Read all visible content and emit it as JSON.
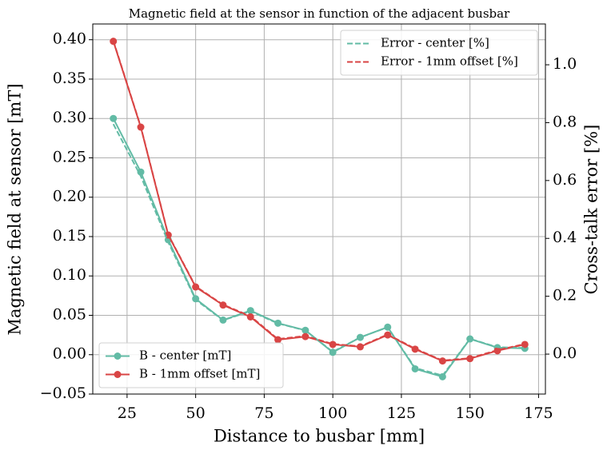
{
  "chart_data": {
    "type": "line",
    "title": "Magnetic field at the sensor in function of the adjacent busbar",
    "x_label": "Distance to busbar [mm]",
    "y_label": "Magnetic field at sensor [mT]",
    "y2_label": "Cross-talk error [%]",
    "x": [
      20,
      30,
      40,
      50,
      60,
      70,
      80,
      90,
      100,
      110,
      120,
      130,
      140,
      150,
      160,
      170
    ],
    "series": [
      {
        "name": "B - center [mT]",
        "color": "#62bba5",
        "line_style": "solid",
        "marker": true,
        "values": [
          0.3,
          0.232,
          0.146,
          0.071,
          0.044,
          0.056,
          0.04,
          0.031,
          0.003,
          0.022,
          0.035,
          -0.018,
          -0.028,
          0.02,
          0.009,
          0.008
        ]
      },
      {
        "name": "B - 1mm offset [mT]",
        "color": "#d94545",
        "line_style": "solid",
        "marker": true,
        "values": [
          0.398,
          0.289,
          0.152,
          0.086,
          0.063,
          0.048,
          0.019,
          0.023,
          0.013,
          0.01,
          0.025,
          0.007,
          -0.008,
          -0.005,
          0.005,
          0.013
        ]
      },
      {
        "name": "Error - center [%]",
        "color": "#62bba5",
        "line_style": "dashed",
        "marker": false,
        "axis": "y2",
        "values": [
          0.795,
          0.615,
          0.387,
          0.188,
          0.117,
          0.148,
          0.106,
          0.082,
          0.008,
          0.058,
          0.093,
          -0.048,
          -0.074,
          0.053,
          0.024,
          0.021
        ]
      },
      {
        "name": "Error - 1mm offset [%]",
        "color": "#d94545",
        "line_style": "dashed",
        "marker": false,
        "axis": "y2",
        "values": [
          1.083,
          0.786,
          0.413,
          0.234,
          0.171,
          0.131,
          0.052,
          0.063,
          0.035,
          0.027,
          0.068,
          0.019,
          -0.022,
          -0.014,
          0.014,
          0.035
        ]
      }
    ],
    "xlim": [
      12.5,
      177.5
    ],
    "xticks": [
      25,
      50,
      75,
      100,
      125,
      150,
      175
    ],
    "ylim": [
      -0.05,
      0.42
    ],
    "yticks": [
      {
        "value": -0.05,
        "label": "−0.05"
      },
      {
        "value": 0,
        "label": "0.00"
      },
      {
        "value": 0.05,
        "label": "0.05"
      },
      {
        "value": 0.1,
        "label": "0.10"
      },
      {
        "value": 0.15,
        "label": "0.15"
      },
      {
        "value": 0.2,
        "label": "0.20"
      },
      {
        "value": 0.25,
        "label": "0.25"
      },
      {
        "value": 0.3,
        "label": "0.30"
      },
      {
        "value": 0.35,
        "label": "0.35"
      },
      {
        "value": 0.4,
        "label": "0.40"
      }
    ],
    "y2lim": [
      -0.138,
      1.141
    ],
    "y2ticks": [
      {
        "value": 0,
        "label": "0.0"
      },
      0.2,
      0.4,
      0.6,
      0.8,
      {
        "value": 1,
        "label": "1.0"
      }
    ],
    "grid": true,
    "legend_loc": {
      "y": "lower left",
      "y2": "upper right"
    }
  }
}
